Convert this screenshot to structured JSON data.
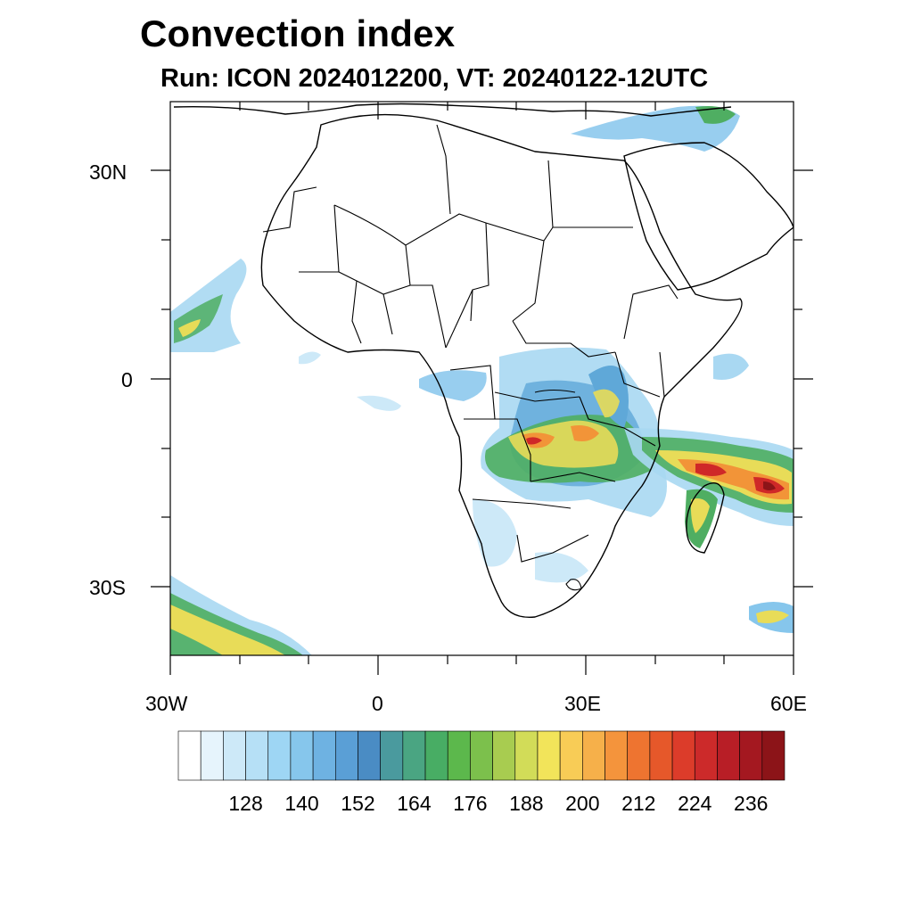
{
  "title": "Convection index",
  "subtitle": "Run: ICON 2024012200,  VT: 20240122-12UTC",
  "y_axis_labels": [
    "30N",
    "0",
    "30S"
  ],
  "x_axis_labels": [
    "30W",
    "0",
    "30E",
    "60E"
  ],
  "colorbar": {
    "tick_labels": [
      "128",
      "140",
      "152",
      "164",
      "176",
      "188",
      "200",
      "212",
      "224",
      "236"
    ],
    "colors": [
      "#ffffff",
      "#e6f4fc",
      "#cde9f8",
      "#b6e0f6",
      "#9ed6f4",
      "#86c6ec",
      "#6eb2e2",
      "#5a9fd6",
      "#4a8cc4",
      "#4a9a9e",
      "#4aa582",
      "#48ad64",
      "#5cb84c",
      "#7cc04c",
      "#a8cc50",
      "#d2dc58",
      "#f2e45a",
      "#f8cc56",
      "#f6b04a",
      "#f4943c",
      "#ee7430",
      "#e6582a",
      "#dc3c2a",
      "#cc2a2a",
      "#b81e26",
      "#a41820",
      "#8c1418"
    ]
  },
  "map": {
    "lon_range": [
      -30,
      60
    ],
    "lat_range": [
      -40,
      40
    ],
    "field_colors": {
      "light": "#a9d8f2",
      "mid": "#5fa8d8",
      "green": "#4fae62",
      "yellow": "#e8dc58",
      "orange": "#f29438",
      "red": "#cf2828"
    }
  }
}
